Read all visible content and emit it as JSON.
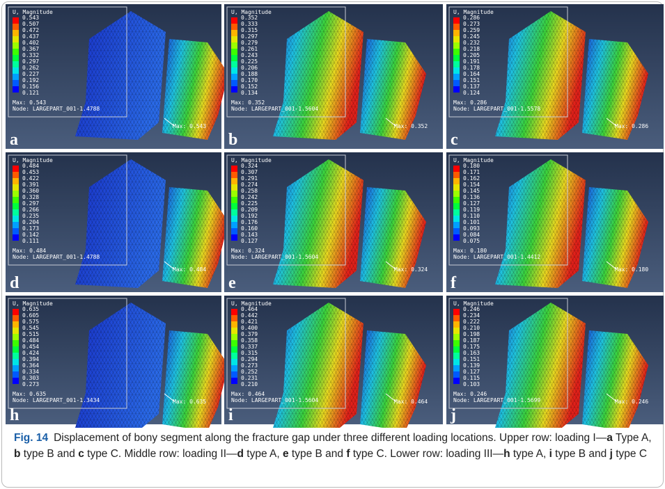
{
  "panels": [
    {
      "letter": "a",
      "legend_title": "U, Magnitude",
      "legend_values": [
        "0.543",
        "0.507",
        "0.472",
        "0.437",
        "0.402",
        "0.367",
        "0.332",
        "0.297",
        "0.262",
        "0.227",
        "0.192",
        "0.156",
        "0.121"
      ],
      "max": "Max: 0.543",
      "node": "Node: LARGEPART_001-1.4788",
      "max_annotation": "Max: 0.543"
    },
    {
      "letter": "b",
      "legend_title": "U, Magnitude",
      "legend_values": [
        "0.352",
        "0.333",
        "0.315",
        "0.297",
        "0.279",
        "0.261",
        "0.243",
        "0.225",
        "0.206",
        "0.188",
        "0.170",
        "0.152",
        "0.134"
      ],
      "max": "Max: 0.352",
      "node": "Node: LARGEPART_001-1.5604",
      "max_annotation": "Max: 0.352"
    },
    {
      "letter": "c",
      "legend_title": "U, Magnitude",
      "legend_values": [
        "0.286",
        "0.273",
        "0.259",
        "0.245",
        "0.232",
        "0.218",
        "0.205",
        "0.191",
        "0.178",
        "0.164",
        "0.151",
        "0.137",
        "0.124"
      ],
      "max": "Max: 0.286",
      "node": "Node: LARGEPART_001-1.5578",
      "max_annotation": "Max: 0.286"
    },
    {
      "letter": "d",
      "legend_title": "U, Magnitude",
      "legend_values": [
        "0.484",
        "0.453",
        "0.422",
        "0.391",
        "0.360",
        "0.328",
        "0.297",
        "0.266",
        "0.235",
        "0.204",
        "0.173",
        "0.142",
        "0.111"
      ],
      "max": "Max: 0.484",
      "node": "Node: LARGEPART_001-1.4788",
      "max_annotation": "Max: 0.484"
    },
    {
      "letter": "e",
      "legend_title": "U, Magnitude",
      "legend_values": [
        "0.324",
        "0.307",
        "0.291",
        "0.274",
        "0.258",
        "0.242",
        "0.225",
        "0.209",
        "0.192",
        "0.176",
        "0.160",
        "0.143",
        "0.127"
      ],
      "max": "Max: 0.324",
      "node": "Node: LARGEPART_001-1.5604",
      "max_annotation": "Max: 0.324"
    },
    {
      "letter": "f",
      "legend_title": "U, Magnitude",
      "legend_values": [
        "0.180",
        "0.171",
        "0.162",
        "0.154",
        "0.145",
        "0.136",
        "0.127",
        "0.119",
        "0.110",
        "0.101",
        "0.093",
        "0.084",
        "0.075"
      ],
      "max": "Max: 0.180",
      "node": "Node: LARGEPART_001-1.4412",
      "max_annotation": "Max: 0.180"
    },
    {
      "letter": "h",
      "legend_title": "U, Magnitude",
      "legend_values": [
        "0.635",
        "0.605",
        "0.575",
        "0.545",
        "0.515",
        "0.484",
        "0.454",
        "0.424",
        "0.394",
        "0.364",
        "0.334",
        "0.303",
        "0.273"
      ],
      "max": "Max: 0.635",
      "node": "Node: LARGEPART_001-1.3434",
      "max_annotation": "Max: 0.635"
    },
    {
      "letter": "i",
      "legend_title": "U, Magnitude",
      "legend_values": [
        "0.464",
        "0.442",
        "0.421",
        "0.400",
        "0.379",
        "0.358",
        "0.337",
        "0.315",
        "0.294",
        "0.273",
        "0.252",
        "0.231",
        "0.210"
      ],
      "max": "Max: 0.464",
      "node": "Node: LARGEPART_001-1.5604",
      "max_annotation": "Max: 0.464"
    },
    {
      "letter": "j",
      "legend_title": "U, Magnitude",
      "legend_values": [
        "0.246",
        "0.234",
        "0.222",
        "0.210",
        "0.198",
        "0.187",
        "0.175",
        "0.163",
        "0.151",
        "0.139",
        "0.127",
        "0.115",
        "0.103"
      ],
      "max": "Max: 0.246",
      "node": "Node: LARGEPART_001-1.5699",
      "max_annotation": "Max: 0.246"
    }
  ],
  "caption": {
    "label": "Fig. 14",
    "segments": [
      {
        "text": "Displacement of bony segment along the fracture gap under three different loading locations. Upper row: loading I—",
        "bold": false
      },
      {
        "text": "a",
        "bold": true
      },
      {
        "text": " Type A, ",
        "bold": false
      },
      {
        "text": "b",
        "bold": true
      },
      {
        "text": " type B and ",
        "bold": false
      },
      {
        "text": "c",
        "bold": true
      },
      {
        "text": " type C. Middle row: loading II—",
        "bold": false
      },
      {
        "text": "d",
        "bold": true
      },
      {
        "text": " type A, ",
        "bold": false
      },
      {
        "text": "e",
        "bold": true
      },
      {
        "text": " type B and ",
        "bold": false
      },
      {
        "text": "f",
        "bold": true
      },
      {
        "text": " type C. Lower row: loading III—",
        "bold": false
      },
      {
        "text": "h",
        "bold": true
      },
      {
        "text": " type A, ",
        "bold": false
      },
      {
        "text": "i",
        "bold": true
      },
      {
        "text": " type B and ",
        "bold": false
      },
      {
        "text": "j",
        "bold": true
      },
      {
        "text": " type C",
        "bold": false
      }
    ]
  }
}
